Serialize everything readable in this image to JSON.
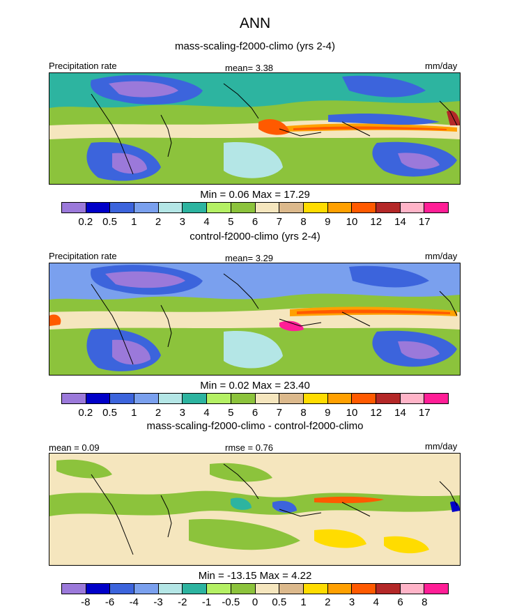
{
  "figure": {
    "title": "ANN"
  },
  "palettes": {
    "precip": [
      "#9b79da",
      "#0000c8",
      "#3c64dc",
      "#7aa0ee",
      "#b4e6e6",
      "#2db4a0",
      "#b4f064",
      "#8cc33c",
      "#f5e6be",
      "#dcb98c",
      "#ffdc00",
      "#ffa000",
      "#ff5a00",
      "#b42828",
      "#ffb4c8",
      "#ff1e96"
    ],
    "diff": [
      "#9b79da",
      "#0000c8",
      "#3c64dc",
      "#7aa0ee",
      "#b4e6e6",
      "#2db4a0",
      "#b4f064",
      "#8cc33c",
      "#f5e6be",
      "#dcb98c",
      "#ffdc00",
      "#ffa000",
      "#ff5a00",
      "#b42828",
      "#ffb4c8",
      "#ff1e96"
    ]
  },
  "panels": [
    {
      "subtitle": "mass-scaling-f2000-climo (yrs 2-4)",
      "left_label": "Precipitation rate",
      "center_label": "mean=   3.38",
      "right_label": "mm/day",
      "minmax": "Min =   0.06 Max =  17.29",
      "ticks": [
        "0.2",
        "0.5",
        "1",
        "2",
        "3",
        "4",
        "5",
        "6",
        "7",
        "8",
        "9",
        "10",
        "12",
        "14",
        "17"
      ]
    },
    {
      "subtitle": "control-f2000-climo (yrs 2-4)",
      "left_label": "Precipitation rate",
      "center_label": "mean=   3.29",
      "right_label": "mm/day",
      "minmax": "Min =   0.02 Max =  23.40",
      "ticks": [
        "0.2",
        "0.5",
        "1",
        "2",
        "3",
        "4",
        "5",
        "6",
        "7",
        "8",
        "9",
        "10",
        "12",
        "14",
        "17"
      ]
    },
    {
      "subtitle": "mass-scaling-f2000-climo - control-f2000-climo",
      "left_label": "mean =   0.09",
      "center_label": "rmse =   0.76",
      "right_label": "mm/day",
      "minmax": "Min = -13.15 Max =   4.22",
      "ticks": [
        "-8",
        "-6",
        "-4",
        "-3",
        "-2",
        "-1",
        "-0.5",
        "0",
        "0.5",
        "1",
        "2",
        "3",
        "4",
        "6",
        "8"
      ]
    }
  ]
}
